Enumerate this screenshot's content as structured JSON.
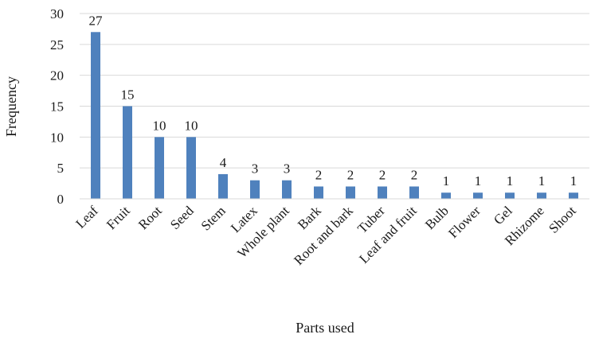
{
  "chart_data": {
    "type": "bar",
    "title": "",
    "xlabel": "Parts used",
    "ylabel": "Frequency",
    "ylim": [
      0,
      30
    ],
    "yticks": [
      0,
      5,
      10,
      15,
      20,
      25,
      30
    ],
    "grid": true,
    "legend": "none",
    "bar_color": "#4f81bd",
    "grid_color": "#d9d9d9",
    "categories": [
      "Leaf",
      "Fruit",
      "Root",
      "Seed",
      "Stem",
      "Latex",
      "Whole plant",
      "Bark",
      "Root and bark",
      "Tuber",
      "Leaf and fruit",
      "Bulb",
      "Flower",
      "Gel",
      "Rhizome",
      "Shoot"
    ],
    "values": [
      27,
      15,
      10,
      10,
      4,
      3,
      3,
      2,
      2,
      2,
      2,
      1,
      1,
      1,
      1,
      1
    ]
  }
}
